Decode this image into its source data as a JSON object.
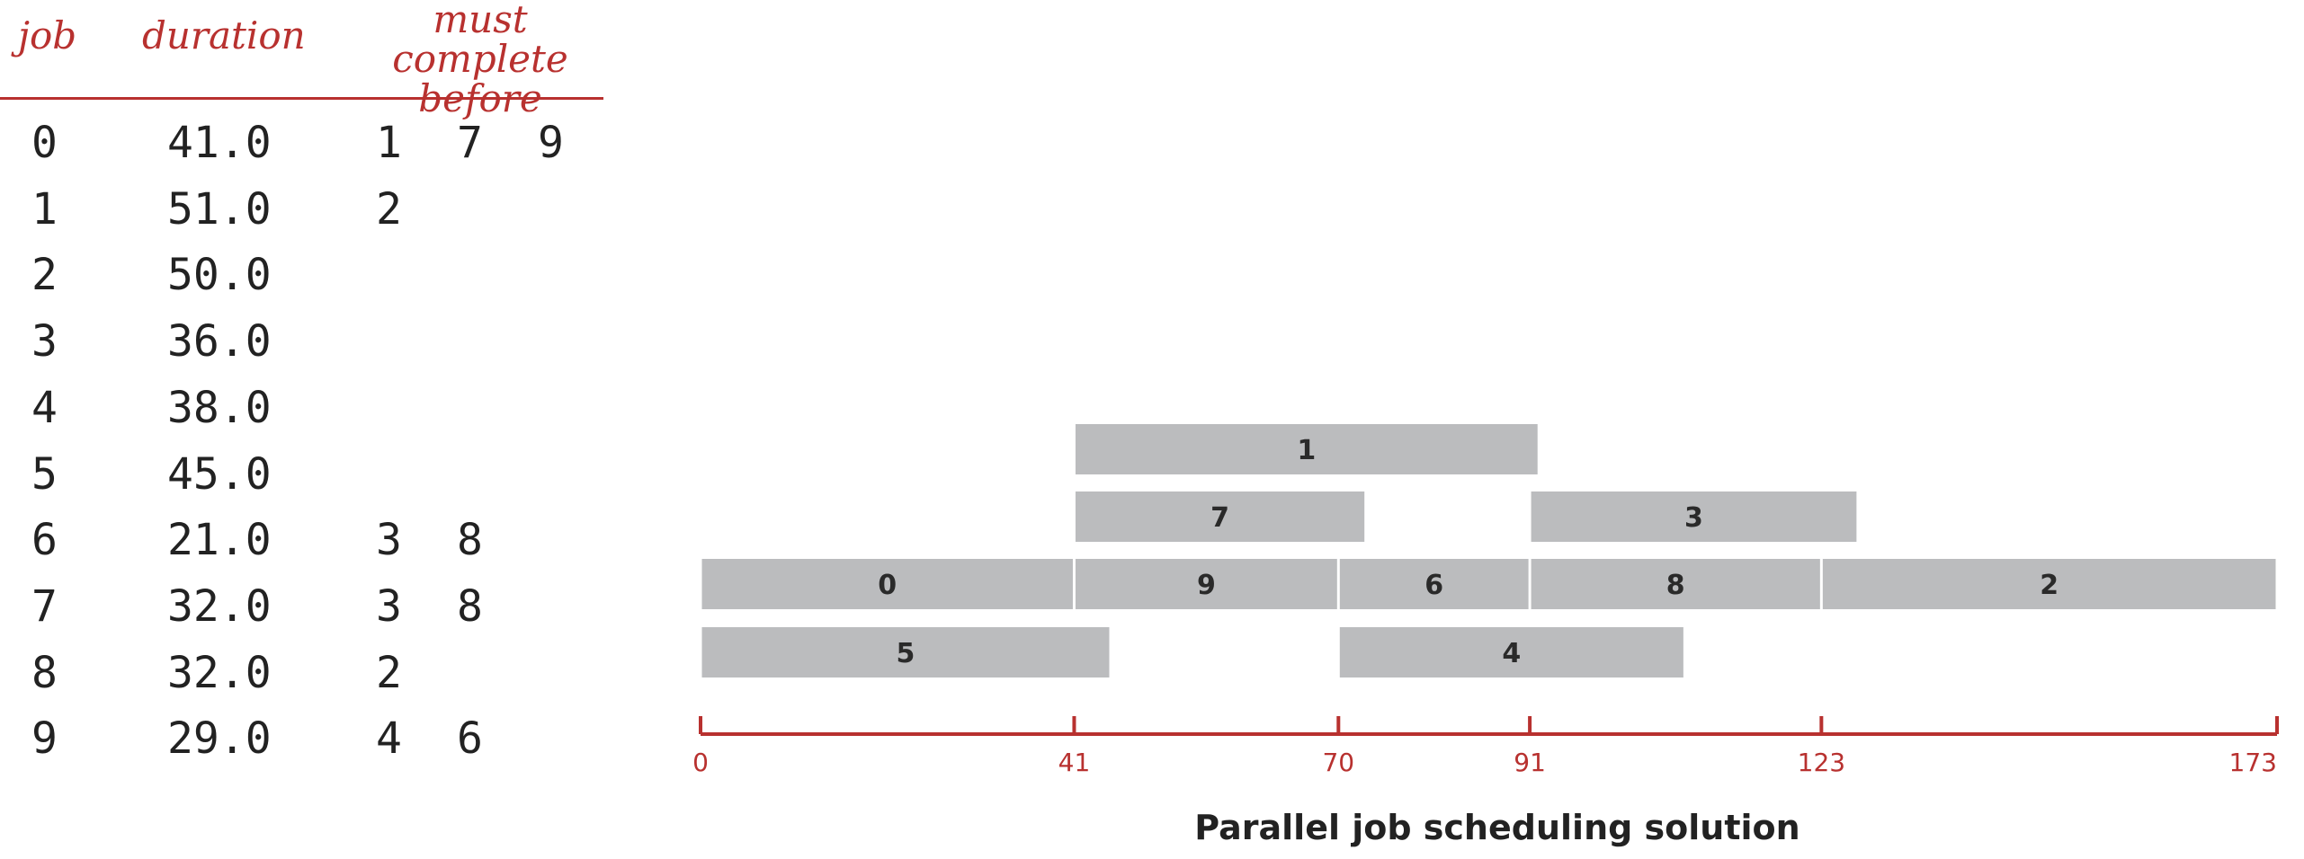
{
  "table": {
    "headers": {
      "job": "job",
      "duration": "duration",
      "must_complete": "must complete",
      "before": "before"
    },
    "rows": [
      {
        "job": "0",
        "duration": "41.0",
        "before": [
          "1",
          "7",
          "9"
        ]
      },
      {
        "job": "1",
        "duration": "51.0",
        "before": [
          "2"
        ]
      },
      {
        "job": "2",
        "duration": "50.0",
        "before": []
      },
      {
        "job": "3",
        "duration": "36.0",
        "before": []
      },
      {
        "job": "4",
        "duration": "38.0",
        "before": []
      },
      {
        "job": "5",
        "duration": "45.0",
        "before": []
      },
      {
        "job": "6",
        "duration": "21.0",
        "before": [
          "3",
          "8"
        ]
      },
      {
        "job": "7",
        "duration": "32.0",
        "before": [
          "3",
          "8"
        ]
      },
      {
        "job": "8",
        "duration": "32.0",
        "before": [
          "2"
        ]
      },
      {
        "job": "9",
        "duration": "29.0",
        "before": [
          "4",
          "6"
        ]
      }
    ]
  },
  "schedule": {
    "caption": "Parallel job scheduling solution",
    "axis_ticks": [
      0,
      41,
      70,
      91,
      123,
      173
    ],
    "axis_max": 173,
    "bars": [
      {
        "job": "1",
        "start": 41,
        "end": 92,
        "row": 0
      },
      {
        "job": "7",
        "start": 41,
        "end": 73,
        "row": 1
      },
      {
        "job": "3",
        "start": 91,
        "end": 127,
        "row": 1
      },
      {
        "job": "0",
        "start": 0,
        "end": 41,
        "row": 2
      },
      {
        "job": "9",
        "start": 41,
        "end": 70,
        "row": 2
      },
      {
        "job": "6",
        "start": 70,
        "end": 91,
        "row": 2
      },
      {
        "job": "8",
        "start": 91,
        "end": 123,
        "row": 2
      },
      {
        "job": "2",
        "start": 123,
        "end": 173,
        "row": 2
      },
      {
        "job": "5",
        "start": 0,
        "end": 45,
        "row": 3
      },
      {
        "job": "4",
        "start": 70,
        "end": 108,
        "row": 3
      }
    ],
    "colors": {
      "bar": "#bbbcbe",
      "axis": "#b8312f"
    }
  }
}
